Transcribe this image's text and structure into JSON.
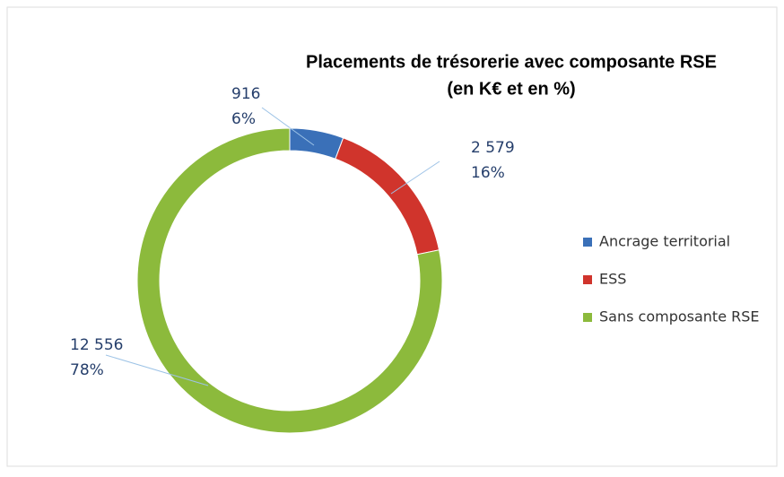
{
  "chart_data": {
    "type": "donut",
    "title": "Placements de trésorerie avec composante RSE",
    "subtitle": "(en K€ et en %)",
    "categories": [
      "Ancrage territorial",
      "ESS",
      "Sans composante RSE"
    ],
    "values": [
      916,
      2579,
      12556
    ],
    "value_labels": [
      "916",
      "2 579",
      "12 556"
    ],
    "percent_labels": [
      "6%",
      "16%",
      "78%"
    ],
    "colors": [
      "#3a70b8",
      "#d0342c",
      "#8cba3c"
    ],
    "legend": "right"
  }
}
